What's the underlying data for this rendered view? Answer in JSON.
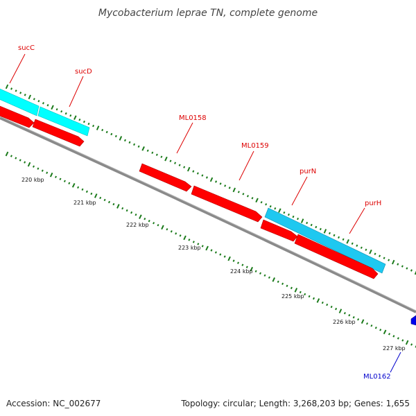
{
  "title": "Mycobacterium leprae TN, complete genome",
  "accession": "Accession: NC_002677",
  "topology": "Topology: circular; Length: 3,268,203 bp; Genes: 1,655",
  "colors": {
    "backbone": "#8a8a8a",
    "forward_gene": "#00ffff",
    "forward_cds": "#1ec8f0",
    "reverse_gene": "#ff0000",
    "tick": "#1a7a1a",
    "label_red": "#dd0000",
    "label_blue": "#0000cc",
    "highlight_gene": "#0000ee"
  },
  "genes": [
    {
      "name": "sucC",
      "color": "label_red"
    },
    {
      "name": "sucD",
      "color": "label_red"
    },
    {
      "name": "ML0158",
      "color": "label_red"
    },
    {
      "name": "ML0159",
      "color": "label_red"
    },
    {
      "name": "purN",
      "color": "label_red"
    },
    {
      "name": "purH",
      "color": "label_red"
    },
    {
      "name": "ML0162",
      "color": "label_blue"
    }
  ],
  "ticks": [
    "220 kbp",
    "221 kbp",
    "222 kbp",
    "223 kbp",
    "224 kbp",
    "225 kbp",
    "226 kbp",
    "227 kbp"
  ]
}
